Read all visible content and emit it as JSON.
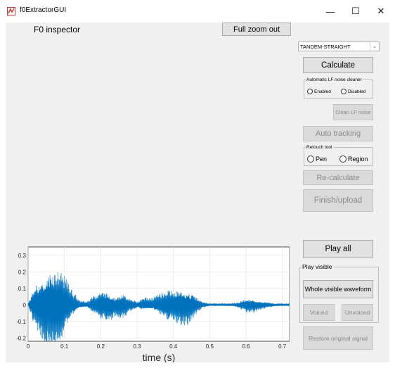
{
  "window": {
    "title": "f0ExtractorGUI",
    "minimize": "—",
    "maximize": "☐",
    "close": "✕"
  },
  "inspector_label": "F0 inspector",
  "full_zoom_button": "Full zoom out",
  "method_dropdown": {
    "selected": "TANDEM-STRAIGHT",
    "arrow": "⌄"
  },
  "calculate_button": "Calculate",
  "lf_noise_group": {
    "title": "Automatic LF noise cleaner",
    "options": [
      "Enabled",
      "Disabled"
    ],
    "selected": "Enabled"
  },
  "clean_lf_button": "Clean LF noise",
  "auto_tracking_button": "Auto tracking",
  "retouch_group": {
    "title": "Retouch tool",
    "options": [
      "Pen",
      "Region"
    ],
    "selected": "Pen"
  },
  "recalculate_button": "Re-calculate",
  "finish_button": "Finish/upload",
  "play_all_button": "Play all",
  "play_visible_group": {
    "title": "Play visible",
    "whole_button": "Whole visible waveform",
    "voiced_button": "Voiced",
    "unvoiced_button": "Unvoiced"
  },
  "restore_button": "Restore original signal",
  "chart_data": {
    "type": "line",
    "title": "",
    "xlabel": "time (s)",
    "ylabel": "",
    "xlim": [
      0,
      0.72
    ],
    "ylim": [
      -0.22,
      0.35
    ],
    "xticks": [
      "0",
      "0.1",
      "0.2",
      "0.3",
      "0.4",
      "0.5",
      "0.6",
      "0.7"
    ],
    "yticks": [
      "0.3",
      "0.2",
      "0.1",
      "0",
      "-0.1",
      "-0.2"
    ],
    "grid": true,
    "color": "#0072bd",
    "envelope_x": [
      0,
      0.01,
      0.02,
      0.04,
      0.06,
      0.08,
      0.1,
      0.12,
      0.14,
      0.16,
      0.18,
      0.2,
      0.22,
      0.24,
      0.26,
      0.28,
      0.3,
      0.32,
      0.34,
      0.36,
      0.38,
      0.4,
      0.42,
      0.44,
      0.46,
      0.48,
      0.5,
      0.52,
      0.54,
      0.56,
      0.58,
      0.6,
      0.62,
      0.64,
      0.66,
      0.68,
      0.7,
      0.72
    ],
    "envelope_amp": [
      0.01,
      0.08,
      0.16,
      0.22,
      0.32,
      0.27,
      0.2,
      0.1,
      0.03,
      0.02,
      0.06,
      0.1,
      0.1,
      0.08,
      0.09,
      0.05,
      0.02,
      0.05,
      0.04,
      0.07,
      0.1,
      0.11,
      0.13,
      0.12,
      0.07,
      0.02,
      0.01,
      0.01,
      0.01,
      0.01,
      0.02,
      0.05,
      0.05,
      0.03,
      0.02,
      0.01,
      0.01,
      0.01
    ]
  }
}
